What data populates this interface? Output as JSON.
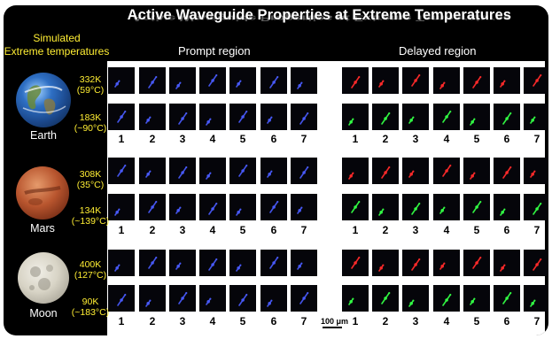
{
  "title": "Active Waveguide Properties at Extreme Temperatures",
  "simulated_label_line1": "Simulated",
  "simulated_label_line2": "Extreme temperatures",
  "regions": {
    "prompt": "Prompt region",
    "delayed": "Delayed region"
  },
  "column_numbers": [
    "1",
    "2",
    "3",
    "4",
    "5",
    "6",
    "7"
  ],
  "scale_bar": "100 μm",
  "planets": [
    {
      "name": "Earth",
      "icon": "earth-globe",
      "temps": [
        {
          "k": "332K",
          "c": "(59°C)"
        },
        {
          "k": "183K",
          "c": "(~90°C)"
        }
      ]
    },
    {
      "name": "Mars",
      "icon": "mars-globe",
      "temps": [
        {
          "k": "308K",
          "c": "(35°C)"
        },
        {
          "k": "134K",
          "c": "(~139°C)"
        }
      ]
    },
    {
      "name": "Moon",
      "icon": "moon-globe",
      "temps": [
        {
          "k": "400K",
          "c": "(127°C)"
        },
        {
          "k": "90K",
          "c": "(~183°C)"
        }
      ]
    }
  ],
  "colors": {
    "prompt_emission": "#4a5cff",
    "delayed_high_temp": "#ff2a2a",
    "delayed_low_temp": "#33ff44",
    "temperature_text": "#ffee33"
  }
}
